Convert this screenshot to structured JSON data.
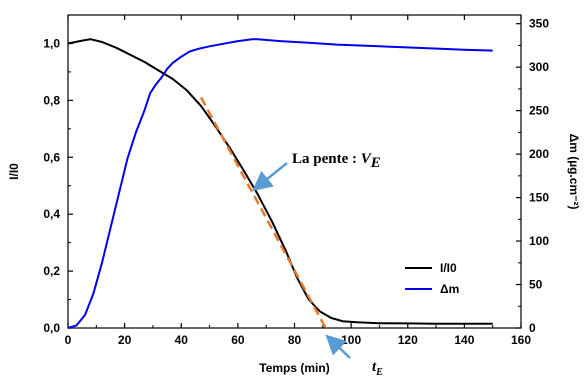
{
  "chart_data": {
    "type": "line",
    "xlabel": "Temps (min)",
    "ylabel_left": "I/I0",
    "ylabel_right": "Δm (µg.cm⁻²)",
    "xlim": [
      0,
      160
    ],
    "ylim_left": [
      0,
      1.1
    ],
    "ylim_right": [
      0,
      360
    ],
    "x_ticks": [
      0,
      20,
      40,
      60,
      80,
      100,
      120,
      140,
      160
    ],
    "y_left_ticks": [
      0.0,
      0.2,
      0.4,
      0.6,
      0.8,
      1.0
    ],
    "y_left_tick_labels": [
      "0,0",
      "0,2",
      "0,4",
      "0,6",
      "0,8",
      "1,0"
    ],
    "y_right_ticks": [
      0,
      50,
      100,
      150,
      200,
      250,
      300,
      350
    ],
    "legend_position": "center-right",
    "series": [
      {
        "name": "I/I0",
        "color": "#000000",
        "axis": "left",
        "points": [
          [
            0,
            1.0
          ],
          [
            5,
            1.01
          ],
          [
            8,
            1.015
          ],
          [
            12,
            1.005
          ],
          [
            17,
            0.985
          ],
          [
            22,
            0.96
          ],
          [
            27,
            0.935
          ],
          [
            32,
            0.905
          ],
          [
            37,
            0.875
          ],
          [
            42,
            0.835
          ],
          [
            47,
            0.78
          ],
          [
            52,
            0.71
          ],
          [
            57,
            0.635
          ],
          [
            62,
            0.555
          ],
          [
            67,
            0.47
          ],
          [
            72,
            0.375
          ],
          [
            77,
            0.27
          ],
          [
            81,
            0.175
          ],
          [
            85,
            0.1
          ],
          [
            89,
            0.058
          ],
          [
            93,
            0.035
          ],
          [
            97,
            0.024
          ],
          [
            102,
            0.02
          ],
          [
            110,
            0.017
          ],
          [
            120,
            0.016
          ],
          [
            130,
            0.015
          ],
          [
            140,
            0.015
          ],
          [
            150,
            0.015
          ]
        ]
      },
      {
        "name": "Δm",
        "color": "#0000ee",
        "axis": "right",
        "points": [
          [
            0,
            0
          ],
          [
            3,
            3
          ],
          [
            6,
            15
          ],
          [
            9,
            40
          ],
          [
            12,
            75
          ],
          [
            15,
            115
          ],
          [
            18,
            155
          ],
          [
            21,
            195
          ],
          [
            24,
            225
          ],
          [
            27,
            250
          ],
          [
            29,
            270
          ],
          [
            31,
            280
          ],
          [
            33,
            288
          ],
          [
            35,
            298
          ],
          [
            37,
            305
          ],
          [
            40,
            312
          ],
          [
            43,
            318
          ],
          [
            46,
            321
          ],
          [
            50,
            324
          ],
          [
            55,
            327
          ],
          [
            60,
            330
          ],
          [
            65,
            332
          ],
          [
            67,
            332
          ],
          [
            75,
            330
          ],
          [
            85,
            328
          ],
          [
            95,
            326
          ],
          [
            110,
            324
          ],
          [
            125,
            322
          ],
          [
            140,
            320
          ],
          [
            150,
            319
          ]
        ]
      }
    ],
    "tangent": {
      "color": "#e8782e",
      "x1": 47,
      "y1": 0.81,
      "x2": 91,
      "y2": 0.0
    },
    "annotations": {
      "slope_label_prefix": "La pente : ",
      "slope_label_var": "V",
      "slope_label_sub": "E",
      "t_label_var": "t",
      "t_label_sub": "E",
      "arrow_color": "#5b9bd5"
    }
  }
}
